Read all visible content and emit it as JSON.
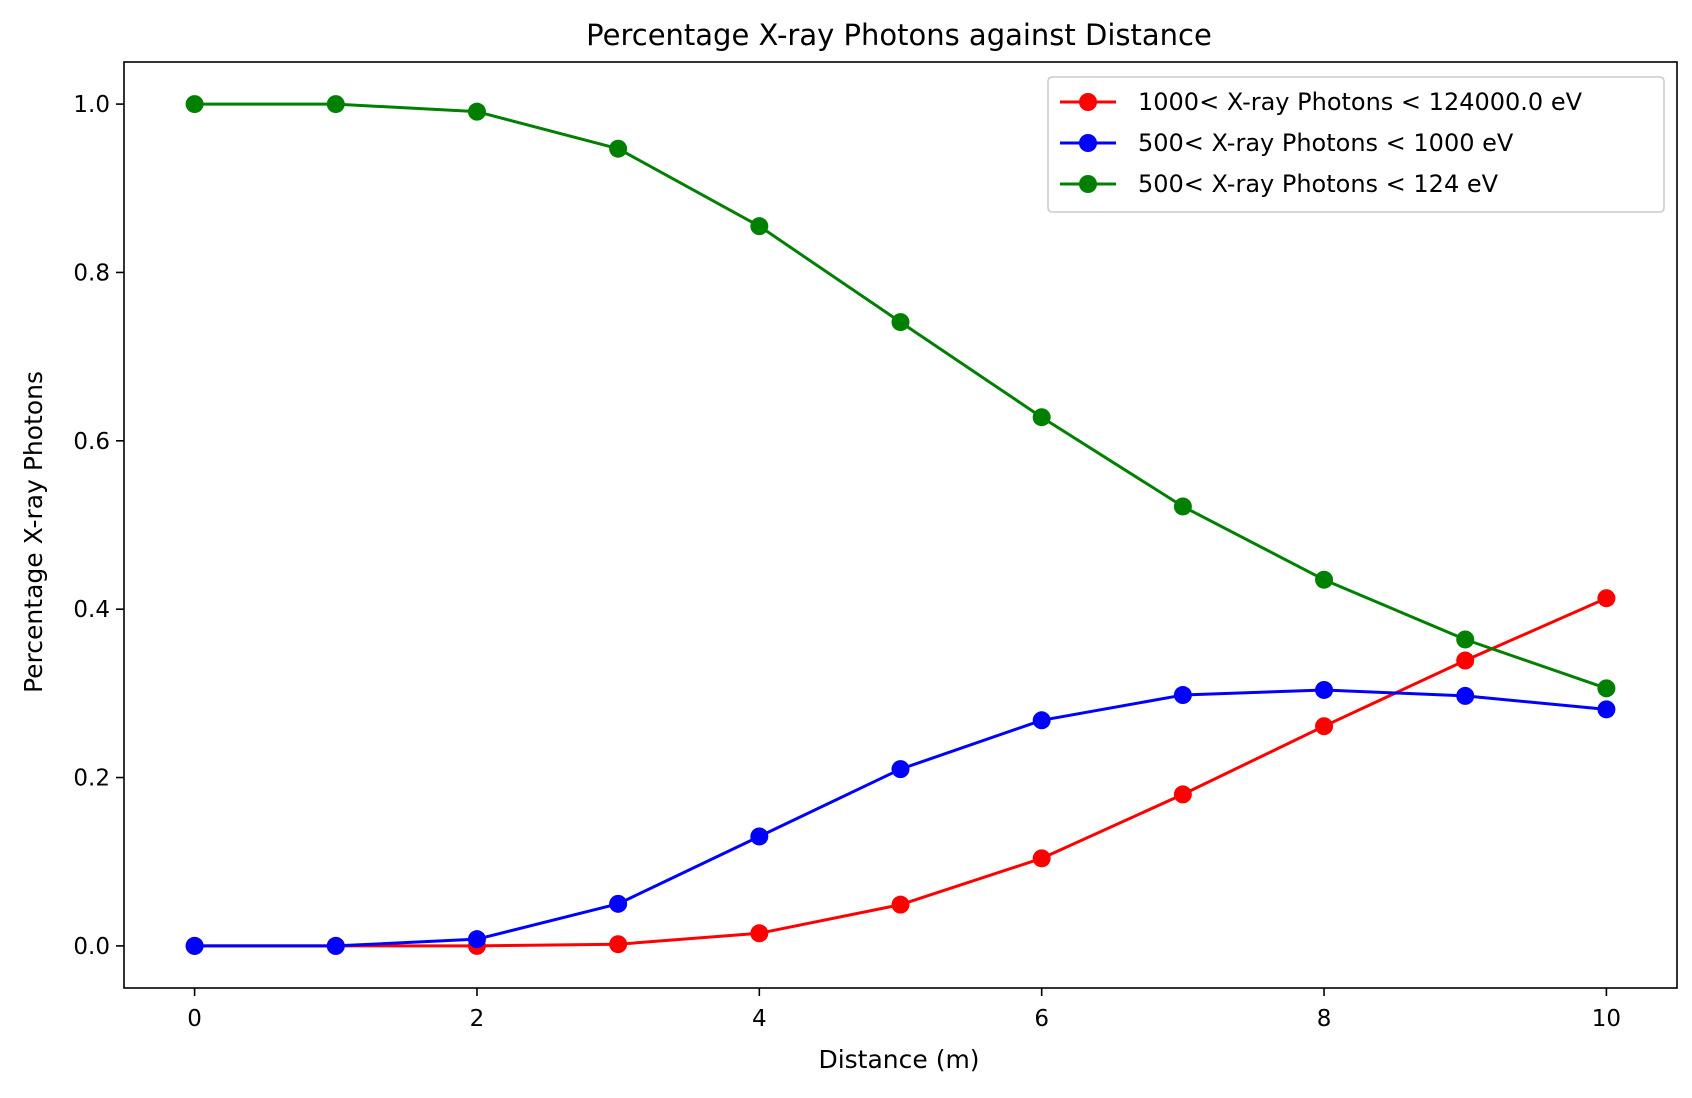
{
  "chart_data": {
    "type": "line",
    "title": "Percentage X-ray Photons against Distance",
    "xlabel": "Distance (m)",
    "ylabel": "Percentage X-ray Photons",
    "xlim": [
      -0.5,
      10.5
    ],
    "ylim": [
      -0.05,
      1.05
    ],
    "x_ticks": [
      0,
      2,
      4,
      6,
      8,
      10
    ],
    "x_tick_labels": [
      "0",
      "2",
      "4",
      "6",
      "8",
      "10"
    ],
    "y_ticks": [
      0.0,
      0.2,
      0.4,
      0.6,
      0.8,
      1.0
    ],
    "y_tick_labels": [
      "0.0",
      "0.2",
      "0.4",
      "0.6",
      "0.8",
      "1.0"
    ],
    "grid": false,
    "legend_position": "top-right",
    "x": [
      0,
      1,
      2,
      3,
      4,
      5,
      6,
      7,
      8,
      9,
      10
    ],
    "series": [
      {
        "name": "1000< X-ray Photons < 124000.0 eV",
        "color": "#ff0000",
        "marker": "circle",
        "values": [
          0.0,
          0.0,
          0.0,
          0.002,
          0.015,
          0.049,
          0.104,
          0.18,
          0.261,
          0.339,
          0.413
        ]
      },
      {
        "name": "500< X-ray Photons < 1000 eV",
        "color": "#0000ff",
        "marker": "circle",
        "values": [
          0.0,
          0.0,
          0.008,
          0.05,
          0.13,
          0.21,
          0.268,
          0.298,
          0.304,
          0.297,
          0.281
        ]
      },
      {
        "name": "500< X-ray Photons < 124 eV",
        "color": "#008000",
        "marker": "circle",
        "values": [
          1.0,
          1.0,
          0.991,
          0.947,
          0.855,
          0.741,
          0.628,
          0.522,
          0.435,
          0.364,
          0.306
        ]
      }
    ]
  }
}
